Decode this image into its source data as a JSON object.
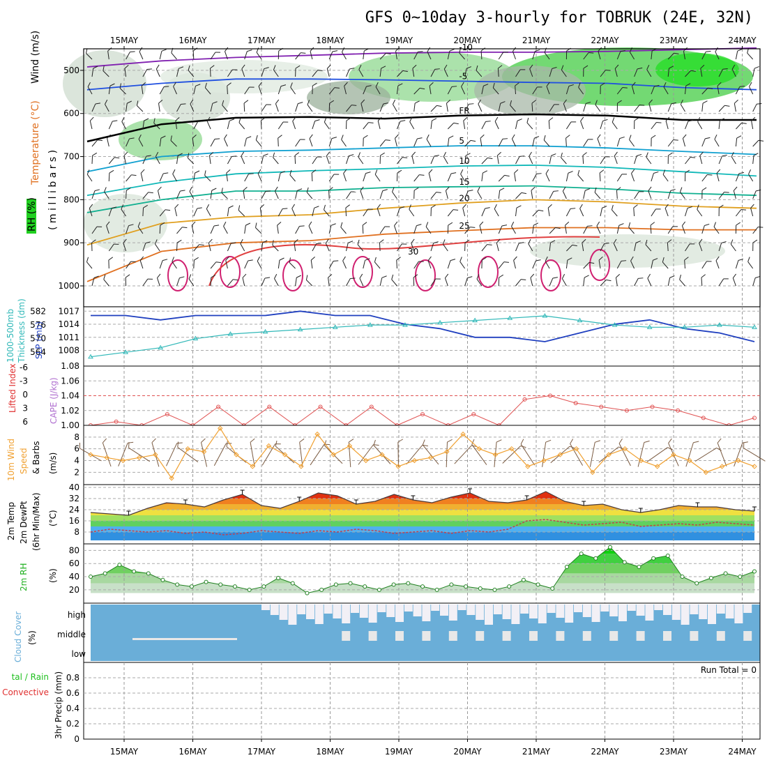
{
  "title": "GFS 0~10day 3-hourly for TOBRUK (24E, 32N)",
  "dates": [
    "15MAY",
    "16MAY",
    "17MAY",
    "18MAY",
    "19MAY",
    "20MAY",
    "21MAY",
    "22MAY",
    "23MAY",
    "24MAY"
  ],
  "colors": {
    "slp": "#1f3fbf",
    "thickness": "#30b8b8",
    "cape": "#e05050",
    "wind": "#f0a030",
    "temp_fill": "#e08a20",
    "rh": "#20b020",
    "cloud": "#6aaed8",
    "cloud_gap": "#f2f0f6",
    "precip_total": "#20c020",
    "precip_conv": "#e03030"
  },
  "labels": {
    "upper_wind": "Wind (m/s)",
    "upper_temp": "Temperature (°C)",
    "upper_rh": "RH (%)",
    "upper_mb": "( m i l l i b a r s )",
    "slp": "SLP (mb)",
    "thickness": "Thickness (dm)",
    "thickness_layer": "1000-500mb",
    "cape": "CAPE (J/kg)",
    "lifted": "Lifted Index",
    "wind10a": "10m Wind",
    "wind10b": "Speed",
    "wind10c": "& Barbs",
    "wind10unit": "(m/s)",
    "temp1": "2m Temp",
    "temp2": "2m DewPt",
    "temp3": "(6hr Min/Max)",
    "tempunit": "(°C)",
    "rh": "2m RH",
    "rhunit": "(%)",
    "cloud": "Cloud Cover",
    "cloudunit": "(%)",
    "cloud_high": "high",
    "cloud_middle": "middle",
    "cloud_low": "low",
    "precip1": "3hr Precip (mm)",
    "precip_total": "tal / Rain",
    "precip_conv": "Convective",
    "run_total": "Run Total = 0"
  },
  "chart_data": [
    {
      "type": "heatmap",
      "panel": "upper-air",
      "ylabel": "( m i l l i b a r s )",
      "yticks": [
        500,
        600,
        700,
        800,
        900,
        1000
      ],
      "ylim": [
        1000,
        450
      ],
      "contour_labels_temp": [
        "-10",
        "-5",
        "FR",
        "5",
        "10",
        "15",
        "20",
        "25",
        "30"
      ],
      "rh_label": "30",
      "isotherms": [
        {
          "name": "-10",
          "values": [
            -10,
            -10,
            -10,
            -10,
            -10,
            -10,
            -10,
            -10,
            -10,
            -10
          ],
          "p": [
            492,
            478,
            470,
            465,
            460,
            458,
            458,
            456,
            452,
            448
          ]
        },
        {
          "name": "-5",
          "values": [
            -5
          ],
          "p": [
            545,
            530,
            520,
            520,
            522,
            525,
            528,
            530,
            540,
            545
          ]
        },
        {
          "name": "FR",
          "p": [
            665,
            625,
            610,
            608,
            612,
            605,
            602,
            605,
            615,
            615
          ]
        },
        {
          "name": "5",
          "p": [
            735,
            700,
            688,
            685,
            680,
            675,
            675,
            680,
            688,
            695
          ]
        },
        {
          "name": "10",
          "p": [
            790,
            760,
            740,
            733,
            728,
            722,
            720,
            725,
            735,
            745
          ]
        },
        {
          "name": "15",
          "p": [
            830,
            800,
            780,
            780,
            772,
            770,
            768,
            775,
            785,
            790
          ]
        },
        {
          "name": "20",
          "p": [
            905,
            855,
            840,
            835,
            820,
            808,
            800,
            805,
            815,
            820
          ]
        },
        {
          "name": "25",
          "p": [
            990,
            920,
            900,
            895,
            880,
            872,
            865,
            865,
            870,
            870
          ]
        }
      ]
    },
    {
      "type": "line",
      "panel": "slp-thickness",
      "x": [
        "15MAY",
        "15MAY",
        "16MAY",
        "16MAY",
        "17MAY",
        "17MAY",
        "18MAY",
        "18MAY",
        "19MAY",
        "19MAY",
        "20MAY",
        "20MAY",
        "21MAY",
        "21MAY",
        "22MAY",
        "22MAY",
        "23MAY",
        "23MAY",
        "24MAY",
        "24MAY"
      ],
      "series": [
        {
          "name": "SLP (mb)",
          "axis": "right",
          "values": [
            1016,
            1016,
            1015,
            1016,
            1016,
            1016,
            1017,
            1016,
            1016,
            1014,
            1013,
            1011,
            1011,
            1010,
            1012,
            1014,
            1015,
            1013,
            1012,
            1010
          ]
        },
        {
          "name": "Thickness (dm)",
          "axis": "left",
          "values": [
            562,
            564,
            566,
            570,
            572,
            573,
            574,
            575,
            576,
            576,
            577,
            578,
            579,
            580,
            578,
            576,
            575,
            575,
            576,
            575
          ]
        }
      ],
      "yticks_left": [
        564,
        570,
        576,
        582
      ],
      "yticks_right": [
        1008,
        1011,
        1014,
        1017
      ]
    },
    {
      "type": "line",
      "panel": "cape-lifted",
      "series": [
        {
          "name": "CAPE (J/kg)",
          "values": [
            1.0,
            1.005,
            1.0,
            1.015,
            1.0,
            1.025,
            1.0,
            1.025,
            1.0,
            1.025,
            1.0,
            1.025,
            1.0,
            1.015,
            1.0,
            1.015,
            1.0,
            1.035,
            1.04,
            1.03,
            1.025,
            1.02,
            1.025,
            1.02,
            1.01,
            1.0,
            1.01
          ]
        }
      ],
      "yticks_left": [
        -6,
        -3,
        0,
        3,
        6
      ],
      "yticks_right": [
        1.0,
        1.02,
        1.04,
        1.06,
        1.08
      ]
    },
    {
      "type": "line",
      "panel": "wind10m",
      "series": [
        {
          "name": "10m Wind Speed",
          "values": [
            5,
            4.5,
            4,
            4.5,
            5,
            1,
            6,
            5.5,
            9.5,
            5,
            3,
            6.5,
            5,
            3,
            8.5,
            5,
            6.5,
            4,
            5,
            3,
            4,
            4.5,
            5.5,
            8.5,
            6,
            5,
            6,
            3,
            4,
            5,
            6,
            2,
            5,
            6,
            4,
            3,
            5,
            4,
            2,
            3,
            4,
            3
          ]
        }
      ],
      "yticks": [
        2,
        4,
        6,
        8
      ]
    },
    {
      "type": "area",
      "panel": "temp-dewpoint",
      "series": [
        {
          "name": "2m Temp",
          "values": [
            22,
            21,
            20,
            25,
            29,
            28,
            26,
            31,
            35,
            27,
            25,
            30,
            36,
            34,
            28,
            30,
            35,
            31,
            29,
            33,
            36,
            30,
            29,
            31,
            37,
            30,
            27,
            28,
            24,
            22,
            24,
            27,
            26,
            26,
            24,
            23
          ]
        },
        {
          "name": "2m DewPt",
          "values": [
            8,
            10,
            9,
            8,
            9,
            7,
            8,
            6,
            7,
            9,
            8,
            7,
            9,
            8,
            10,
            9,
            7,
            8,
            9,
            7,
            9,
            8,
            10,
            16,
            17,
            15,
            13,
            14,
            15,
            12,
            13,
            14,
            13,
            15,
            14,
            13
          ]
        }
      ],
      "yticks": [
        8,
        16,
        24,
        32,
        40
      ]
    },
    {
      "type": "area",
      "panel": "rh2m",
      "series": [
        {
          "name": "2m RH",
          "values": [
            40,
            45,
            58,
            48,
            45,
            35,
            28,
            25,
            32,
            28,
            25,
            20,
            25,
            38,
            30,
            15,
            20,
            28,
            30,
            25,
            20,
            28,
            30,
            25,
            20,
            28,
            25,
            22,
            20,
            25,
            35,
            28,
            22,
            55,
            75,
            68,
            85,
            62,
            55,
            68,
            72,
            40,
            30,
            38,
            45,
            40,
            48
          ]
        }
      ],
      "yticks": [
        20,
        40,
        60,
        80
      ]
    },
    {
      "type": "heatmap",
      "panel": "cloud-cover",
      "yticklabels": [
        "high",
        "middle",
        "low"
      ]
    },
    {
      "type": "bar",
      "panel": "precip",
      "values": [],
      "yticks": [
        0,
        0.2,
        0.4,
        0.6,
        0.8
      ],
      "annotation": "Run Total = 0"
    }
  ]
}
